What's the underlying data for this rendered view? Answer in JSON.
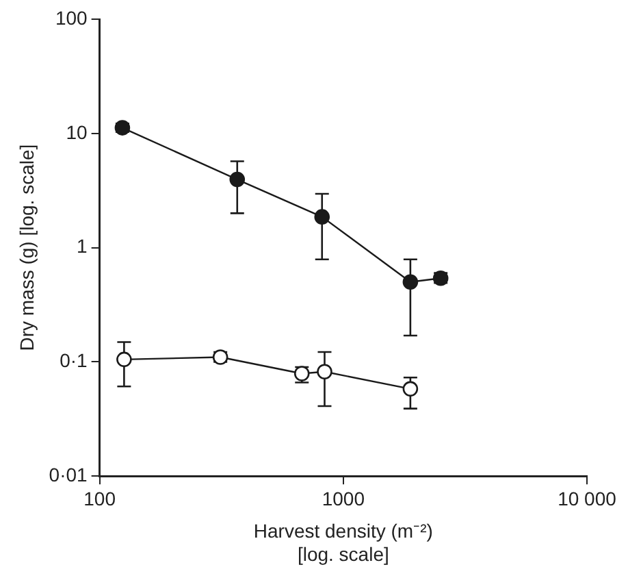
{
  "chart_data": {
    "type": "line",
    "xlabel": "Harvest density (m⁻²)\n[log. scale]",
    "ylabel": "Dry mass (g) [log. scale]",
    "log": "xy",
    "xlim": [
      100,
      10000
    ],
    "xticks": [
      100,
      1000,
      {
        "value": 10000,
        "label": "10 000"
      }
    ],
    "ylim": [
      0.01,
      100
    ],
    "yticks": [
      {
        "value": 0.01,
        "label": "0·01"
      },
      {
        "value": 0.1,
        "label": "0·1"
      },
      1,
      10,
      100
    ],
    "grid": false,
    "legend": false,
    "marker": "circle",
    "line_style": "solid",
    "series": [
      {
        "color": "#1a1a1a",
        "x": [
          124,
          367,
          818,
          1885,
          2510
        ],
        "values": [
          11.2,
          3.95,
          1.86,
          0.5,
          0.54
        ],
        "errors": [
          [
            10.3,
            12.2
          ],
          [
            2.0,
            5.7
          ],
          [
            0.79,
            2.96
          ],
          [
            0.17,
            0.79
          ],
          [
            0.49,
            0.6
          ]
        ]
      },
      {
        "color": "#1a1a1a",
        "x": [
          126,
          313,
          676,
          838,
          1885
        ],
        "values": [
          0.105,
          0.11,
          0.079,
          0.082,
          0.058
        ],
        "errors": [
          [
            0.061,
            0.149
          ],
          [
            0.1,
            0.122
          ],
          [
            0.066,
            0.09
          ],
          [
            0.041,
            0.122
          ],
          [
            0.039,
            0.073
          ]
        ]
      }
    ]
  }
}
